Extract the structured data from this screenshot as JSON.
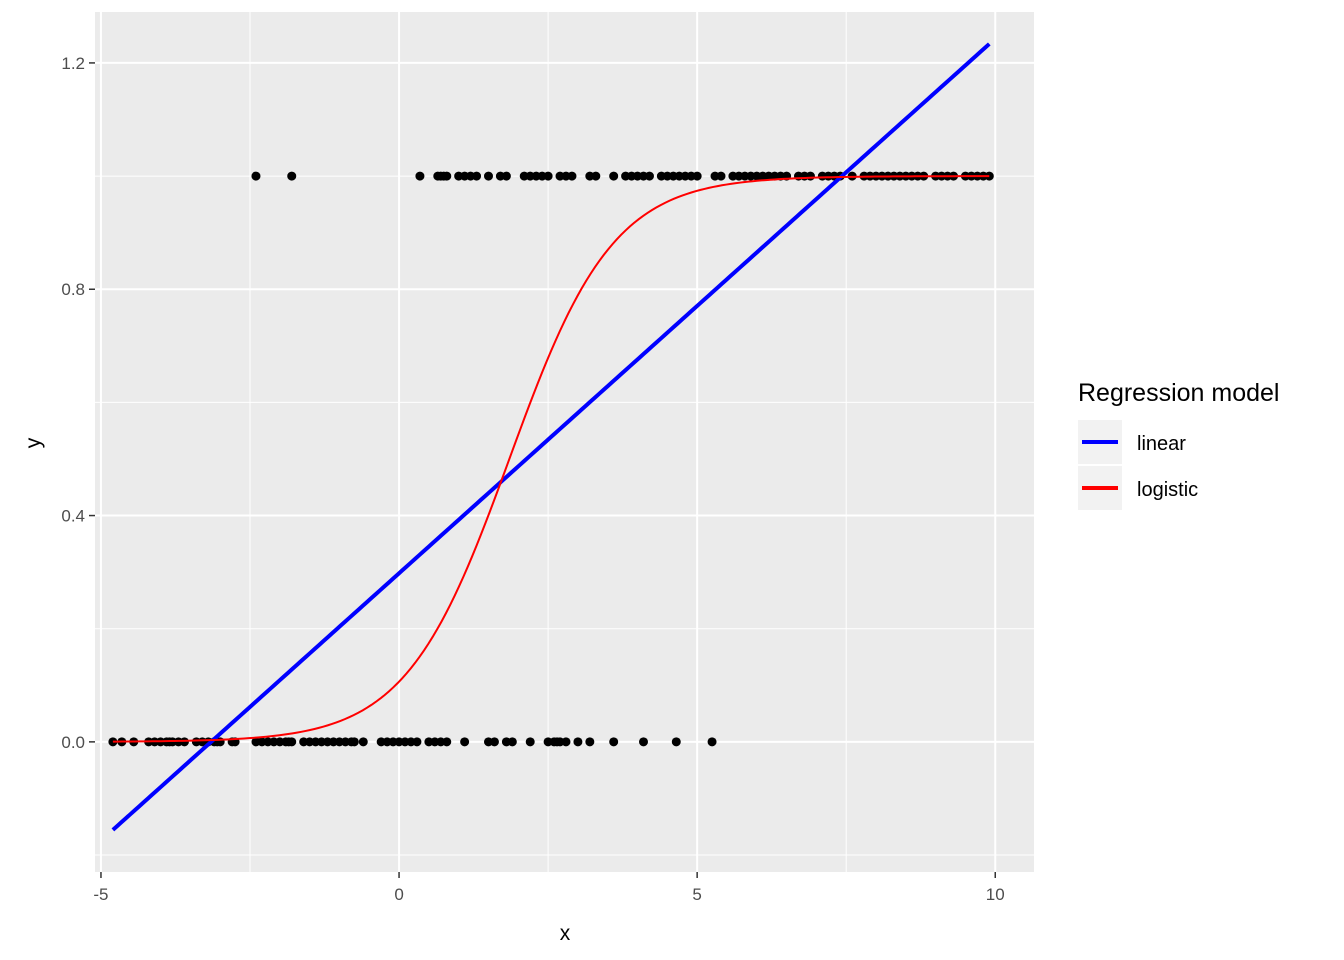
{
  "chart_data": {
    "type": "scatter",
    "xlabel": "x",
    "ylabel": "y",
    "xlim": [
      -5.1,
      10.65
    ],
    "ylim": [
      -0.23,
      1.29
    ],
    "x_ticks": [
      -5,
      0,
      5,
      10
    ],
    "x_tick_labels": [
      "-5",
      "0",
      "5",
      "10"
    ],
    "y_ticks": [
      0.0,
      0.4,
      0.8,
      1.2
    ],
    "y_tick_labels": [
      "0.0",
      "0.4",
      "0.8",
      "1.2"
    ],
    "x_minor_ticks": [
      -2.5,
      2.5,
      7.5
    ],
    "y_minor_ticks": [
      -0.2,
      0.2,
      0.6,
      1.0
    ],
    "grid": true,
    "panel_background": "#ebebeb",
    "points": {
      "color": "#000000",
      "y1_x": [
        -2.4,
        -1.8,
        0.35,
        0.65,
        0.7,
        0.75,
        0.8,
        1.0,
        1.1,
        1.2,
        1.3,
        1.5,
        1.7,
        1.8,
        2.1,
        2.2,
        2.3,
        2.4,
        2.5,
        2.7,
        2.8,
        2.9,
        3.2,
        3.3,
        3.6,
        3.8,
        3.9,
        4.0,
        4.1,
        4.2,
        4.4,
        4.5,
        4.6,
        4.7,
        4.8,
        4.9,
        5.0,
        5.3,
        5.4,
        5.6,
        5.7,
        5.8,
        5.9,
        6.0,
        6.1,
        6.2,
        6.3,
        6.4,
        6.5,
        6.7,
        6.8,
        6.9,
        7.1,
        7.2,
        7.3,
        7.4,
        7.6,
        7.8,
        7.9,
        8.0,
        8.1,
        8.2,
        8.3,
        8.4,
        8.5,
        8.6,
        8.7,
        8.8,
        9.0,
        9.1,
        9.2,
        9.3,
        9.5,
        9.6,
        9.7,
        9.8,
        9.9
      ],
      "y0_x": [
        -4.8,
        -4.65,
        -4.45,
        -4.2,
        -4.1,
        -4.0,
        -3.9,
        -3.85,
        -3.8,
        -3.7,
        -3.6,
        -3.4,
        -3.3,
        -3.2,
        -3.1,
        -3.05,
        -3.0,
        -2.8,
        -2.75,
        -2.4,
        -2.3,
        -2.2,
        -2.1,
        -2.0,
        -1.9,
        -1.85,
        -1.8,
        -1.6,
        -1.5,
        -1.4,
        -1.3,
        -1.2,
        -1.1,
        -1.0,
        -0.9,
        -0.8,
        -0.75,
        -0.6,
        -0.3,
        -0.2,
        -0.1,
        0.0,
        0.1,
        0.2,
        0.3,
        0.5,
        0.6,
        0.7,
        0.8,
        1.1,
        1.5,
        1.6,
        1.8,
        1.9,
        2.2,
        2.5,
        2.6,
        2.65,
        2.7,
        2.8,
        3.0,
        3.2,
        3.6,
        4.1,
        4.65,
        5.25
      ]
    },
    "series": [
      {
        "name": "linear",
        "color": "#0000ff",
        "model": "linear",
        "intercept": 0.298,
        "slope": 0.0945,
        "x_range": [
          -4.8,
          9.9
        ]
      },
      {
        "name": "logistic",
        "color": "#ff0000",
        "model": "logistic",
        "midpoint": 1.85,
        "rate": 1.15,
        "x_range": [
          -4.8,
          9.9
        ]
      }
    ],
    "legend": {
      "title": "Regression model",
      "position": "right",
      "entries": [
        "linear",
        "logistic"
      ]
    }
  }
}
